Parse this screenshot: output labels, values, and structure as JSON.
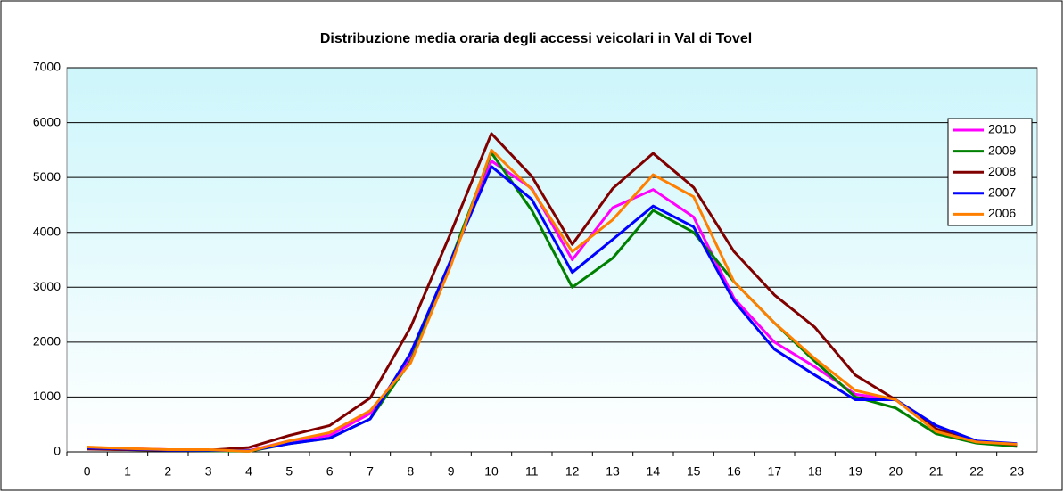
{
  "chart_data": {
    "type": "line",
    "title": "Distribuzione media oraria degli accessi veicolari in Val di Tovel",
    "categories": [
      "0",
      "1",
      "2",
      "3",
      "4",
      "5",
      "6",
      "7",
      "8",
      "9",
      "10",
      "11",
      "12",
      "13",
      "14",
      "15",
      "16",
      "17",
      "18",
      "19",
      "20",
      "21",
      "22",
      "23"
    ],
    "series": [
      {
        "name": "2010",
        "color": "#ff00ff",
        "values": [
          80,
          60,
          40,
          30,
          20,
          200,
          300,
          700,
          1700,
          3500,
          5300,
          4800,
          3500,
          4450,
          4780,
          4280,
          2800,
          2000,
          1550,
          1050,
          950,
          400,
          180,
          130
        ]
      },
      {
        "name": "2009",
        "color": "#008000",
        "values": [
          60,
          40,
          30,
          20,
          10,
          150,
          250,
          600,
          1650,
          3500,
          5450,
          4400,
          3000,
          3530,
          4400,
          4000,
          3100,
          2350,
          1650,
          1000,
          800,
          330,
          160,
          100
        ]
      },
      {
        "name": "2008",
        "color": "#800000",
        "values": [
          50,
          40,
          30,
          30,
          80,
          300,
          480,
          980,
          2270,
          4000,
          5800,
          5020,
          3780,
          4800,
          5440,
          4820,
          3650,
          2860,
          2270,
          1400,
          950,
          420,
          190,
          130
        ]
      },
      {
        "name": "2007",
        "color": "#0000ff",
        "values": [
          70,
          50,
          30,
          30,
          20,
          150,
          250,
          600,
          1800,
          3500,
          5200,
          4600,
          3270,
          3870,
          4480,
          4100,
          2750,
          1870,
          1400,
          950,
          950,
          480,
          200,
          150
        ]
      },
      {
        "name": "2006",
        "color": "#ff8000",
        "values": [
          90,
          60,
          40,
          40,
          10,
          200,
          350,
          750,
          1620,
          3400,
          5500,
          4780,
          3650,
          4230,
          5050,
          4650,
          3100,
          2350,
          1700,
          1120,
          950,
          370,
          180,
          140
        ]
      }
    ],
    "ylim": [
      0,
      7000
    ],
    "yticks": [
      0,
      1000,
      2000,
      3000,
      4000,
      5000,
      6000,
      7000
    ],
    "grid": true,
    "legend": "right"
  }
}
